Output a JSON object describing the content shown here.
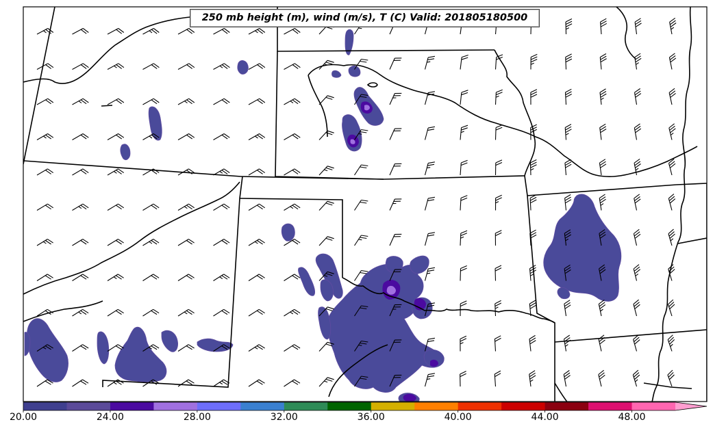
{
  "title": "250 mb height (m), wind (m/s), T (C) Valid: 201805180500",
  "colorbar": {
    "colors": [
      "#3f3f8f",
      "#5b4a99",
      "#4b0aa0",
      "#a070e0",
      "#6e6efa",
      "#3a80d0",
      "#2e8b57",
      "#006400",
      "#d4b000",
      "#ff8000",
      "#ee3000",
      "#cc0000",
      "#8b0010",
      "#dd1070",
      "#ff66b0",
      "#ff9ed0"
    ],
    "tick_labels": [
      "20.00",
      "24.00",
      "28.00",
      "32.00",
      "36.00",
      "40.00",
      "44.00",
      "48.00"
    ]
  },
  "colors": {
    "field_primary": "#4a4a9a",
    "field_secondary": "#5e4ba0",
    "field_core": "#4b0aa0",
    "field_highlight": "#a070e0",
    "boundary": "#000000"
  }
}
